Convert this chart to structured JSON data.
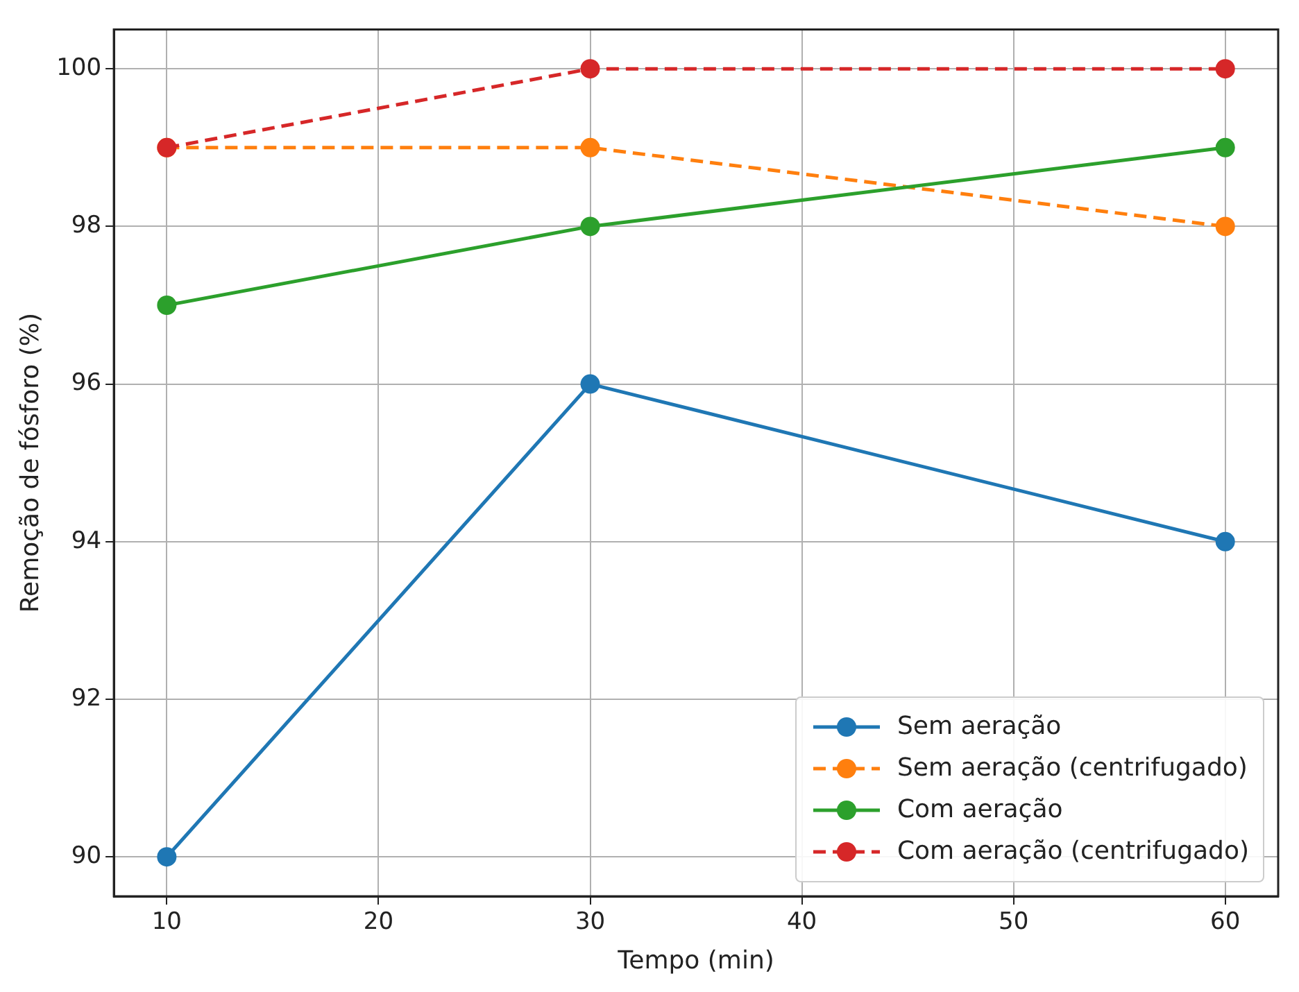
{
  "chart_data": {
    "type": "line",
    "xlabel": "Tempo (min)",
    "ylabel": "Remoção de fósforo (%)",
    "x": [
      10,
      30,
      60
    ],
    "series": [
      {
        "name": "Sem aeração",
        "color": "#1f77b4",
        "values": [
          90,
          96,
          94
        ],
        "line_style": "solid"
      },
      {
        "name": "Sem aeração (centrifugado)",
        "color": "#ff7f0e",
        "values": [
          99,
          99,
          98
        ],
        "line_style": "dashed"
      },
      {
        "name": "Com aeração",
        "color": "#2ca02c",
        "values": [
          97,
          98,
          99
        ],
        "line_style": "solid"
      },
      {
        "name": "Com aeração (centrifugado)",
        "color": "#d62728",
        "values": [
          99,
          100,
          100
        ],
        "line_style": "dashed"
      }
    ],
    "xlim": [
      7.5,
      62.5
    ],
    "xticks": [
      10,
      20,
      30,
      40,
      50,
      60
    ],
    "ylim": [
      89.5,
      100.5
    ],
    "yticks": [
      90,
      92,
      94,
      96,
      98,
      100
    ],
    "grid": true,
    "legend": "bottom right",
    "marker": "circle"
  }
}
